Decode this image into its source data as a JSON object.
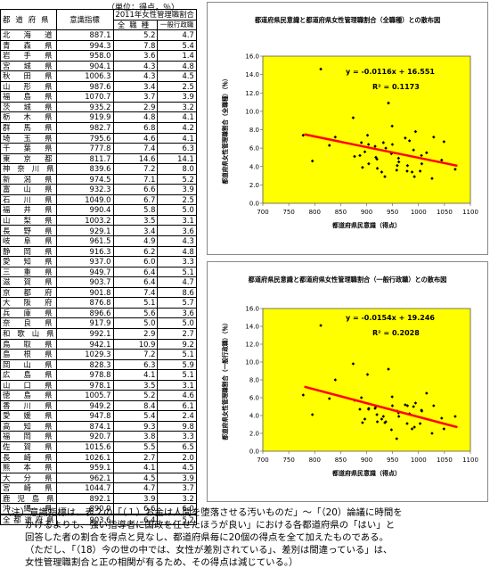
{
  "table": {
    "unit_note": "（単位：得点，％）",
    "headers": {
      "prefecture": "都道府県",
      "awareness": "意識指標",
      "group": "2011年女性管理職割合",
      "all": "全職種",
      "general": "一般行政職"
    },
    "rows": [
      {
        "pref": "北海道",
        "score": "887.1",
        "all": "5.2",
        "gen": "4.7"
      },
      {
        "pref": "青森県",
        "score": "994.3",
        "all": "7.8",
        "gen": "5.4"
      },
      {
        "pref": "岩手県",
        "score": "958.0",
        "all": "3.6",
        "gen": "1.4"
      },
      {
        "pref": "宮城県",
        "score": "904.1",
        "all": "4.3",
        "gen": "4.8"
      },
      {
        "pref": "秋田県",
        "score": "1006.3",
        "all": "4.3",
        "gen": "4.5"
      },
      {
        "pref": "山形県",
        "score": "987.6",
        "all": "3.4",
        "gen": "2.5"
      },
      {
        "pref": "福島県",
        "score": "1070.7",
        "all": "3.7",
        "gen": "3.9"
      },
      {
        "pref": "茨城県",
        "score": "935.2",
        "all": "2.9",
        "gen": "3.2"
      },
      {
        "pref": "栃木県",
        "score": "919.9",
        "all": "4.8",
        "gen": "4.1"
      },
      {
        "pref": "群馬県",
        "score": "982.7",
        "all": "6.8",
        "gen": "4.2"
      },
      {
        "pref": "埼玉県",
        "score": "795.6",
        "all": "4.6",
        "gen": "4.1"
      },
      {
        "pref": "千葉県",
        "score": "777.8",
        "all": "7.4",
        "gen": "6.3"
      },
      {
        "pref": "東京都",
        "score": "811.7",
        "all": "14.6",
        "gen": "14.1"
      },
      {
        "pref": "神奈川県",
        "score": "839.6",
        "all": "7.2",
        "gen": "8.0"
      },
      {
        "pref": "新潟県",
        "score": "974.5",
        "all": "7.1",
        "gen": "5.2"
      },
      {
        "pref": "富山県",
        "score": "932.3",
        "all": "6.6",
        "gen": "3.9"
      },
      {
        "pref": "石川県",
        "score": "1049.0",
        "all": "6.7",
        "gen": "2.5"
      },
      {
        "pref": "福井県",
        "score": "990.4",
        "all": "5.8",
        "gen": "5.0"
      },
      {
        "pref": "山梨県",
        "score": "1003.2",
        "all": "3.5",
        "gen": "3.1"
      },
      {
        "pref": "長野県",
        "score": "929.1",
        "all": "3.4",
        "gen": "3.6"
      },
      {
        "pref": "岐阜県",
        "score": "961.5",
        "all": "4.9",
        "gen": "4.3"
      },
      {
        "pref": "静岡県",
        "score": "916.3",
        "all": "6.2",
        "gen": "4.8"
      },
      {
        "pref": "愛知県",
        "score": "937.0",
        "all": "6.0",
        "gen": "3.3"
      },
      {
        "pref": "三重県",
        "score": "949.7",
        "all": "6.4",
        "gen": "5.1"
      },
      {
        "pref": "滋賀県",
        "score": "903.7",
        "all": "6.4",
        "gen": "4.7"
      },
      {
        "pref": "京都府",
        "score": "901.8",
        "all": "7.4",
        "gen": "8.6"
      },
      {
        "pref": "大阪府",
        "score": "876.8",
        "all": "5.1",
        "gen": "5.7"
      },
      {
        "pref": "兵庫県",
        "score": "896.6",
        "all": "5.6",
        "gen": "3.6"
      },
      {
        "pref": "奈良県",
        "score": "917.9",
        "all": "5.0",
        "gen": "5.0"
      },
      {
        "pref": "和歌山県",
        "score": "992.1",
        "all": "2.9",
        "gen": "2.7"
      },
      {
        "pref": "鳥取県",
        "score": "942.1",
        "all": "10.9",
        "gen": "9.2"
      },
      {
        "pref": "島根県",
        "score": "1029.3",
        "all": "7.2",
        "gen": "5.1"
      },
      {
        "pref": "岡山県",
        "score": "828.3",
        "all": "6.3",
        "gen": "5.9"
      },
      {
        "pref": "広島県",
        "score": "978.8",
        "all": "4.1",
        "gen": "5.1"
      },
      {
        "pref": "山口県",
        "score": "978.1",
        "all": "3.5",
        "gen": "3.1"
      },
      {
        "pref": "徳島県",
        "score": "1005.7",
        "all": "5.2",
        "gen": "4.6"
      },
      {
        "pref": "香川県",
        "score": "949.2",
        "all": "8.4",
        "gen": "6.1"
      },
      {
        "pref": "愛媛県",
        "score": "947.8",
        "all": "5.4",
        "gen": "2.4"
      },
      {
        "pref": "高知県",
        "score": "874.1",
        "all": "9.3",
        "gen": "9.8"
      },
      {
        "pref": "福岡県",
        "score": "920.7",
        "all": "3.8",
        "gen": "3.3"
      },
      {
        "pref": "佐賀県",
        "score": "1015.6",
        "all": "5.5",
        "gen": "6.5"
      },
      {
        "pref": "長崎県",
        "score": "1026.1",
        "all": "2.7",
        "gen": "2.0"
      },
      {
        "pref": "熊本県",
        "score": "959.1",
        "all": "4.1",
        "gen": "4.5"
      },
      {
        "pref": "大分県",
        "score": "962.1",
        "all": "4.5",
        "gen": "3.9"
      },
      {
        "pref": "宮崎県",
        "score": "1044.7",
        "all": "4.7",
        "gen": "3.7"
      },
      {
        "pref": "鹿児島県",
        "score": "892.1",
        "all": "3.9",
        "gen": "3.2"
      },
      {
        "pref": "沖縄県",
        "score": "890.0",
        "all": "6.6",
        "gen": "6.0"
      }
    ],
    "total": {
      "pref": "全都道府県",
      "score": "903.6",
      "all": "6.4",
      "gen": "5.2"
    }
  },
  "chart_data": [
    {
      "type": "scatter",
      "title": "都道府県民意識と都道府県女性管理職割合（全職種）との散布図",
      "xlabel": "都道府県民意識（得点）",
      "ylabel": "都道府県女性管理職割合（全職種）（％）",
      "xlim": [
        700,
        1100
      ],
      "ylim": [
        0,
        16
      ],
      "xticks": [
        "700",
        "750",
        "800",
        "850",
        "900",
        "950",
        "1000",
        "1050",
        "1100"
      ],
      "yticks": [
        "0.0",
        "2.0",
        "4.0",
        "6.0",
        "8.0",
        "10.0",
        "12.0",
        "14.0",
        "16.0"
      ],
      "equation": "y = -0.0116x + 16.551",
      "r2": "R² = 0.1173",
      "slope": -0.0116,
      "intercept": 16.551,
      "trend_x": [
        780,
        1075
      ],
      "grid": false,
      "colors": {
        "plot_bg": "#ffff00",
        "points": "#000000",
        "trend": "#ff0000"
      }
    },
    {
      "type": "scatter",
      "title": "都道府県民意識と都道府県女性管理職割合（一般行政職）との散布図",
      "xlabel": "都道府県民意識（得点）",
      "ylabel": "都道府県女性管理職割合（一般行政職）（％）",
      "xlim": [
        700,
        1100
      ],
      "ylim": [
        0,
        16
      ],
      "xticks": [
        "700",
        "750",
        "800",
        "850",
        "900",
        "950",
        "1000",
        "1050",
        "1100"
      ],
      "yticks": [
        "0.0",
        "2.0",
        "4.0",
        "6.0",
        "8.0",
        "10.0",
        "12.0",
        "14.0",
        "16.0"
      ],
      "equation": "y = -0.0154x + 19.246",
      "r2": "R² = 0.2028",
      "slope": -0.0154,
      "intercept": 19.246,
      "trend_x": [
        780,
        1075
      ],
      "grid": false,
      "colors": {
        "plot_bg": "#ffff00",
        "points": "#000000",
        "trend": "#ff0000"
      }
    }
  ],
  "note": {
    "lines": [
      "（注）意識指標は、表２の「（１）お金は人間を堕落させる汚いものだ」～「（20）論議に時間を",
      "かけるよりも、強い指導者に国政を任せたほうが良い」における各都道府県の「はい」と",
      "回答した者の割合を得点と見なし、都道府県毎に20個の得点を全て加えたものである。",
      "（ただし、「（18）今の世の中では、女性が差別されている」、差別は間違っている」は、",
      "女性管理職割合と正の相関が有るため、その得点は減じている。）"
    ]
  }
}
